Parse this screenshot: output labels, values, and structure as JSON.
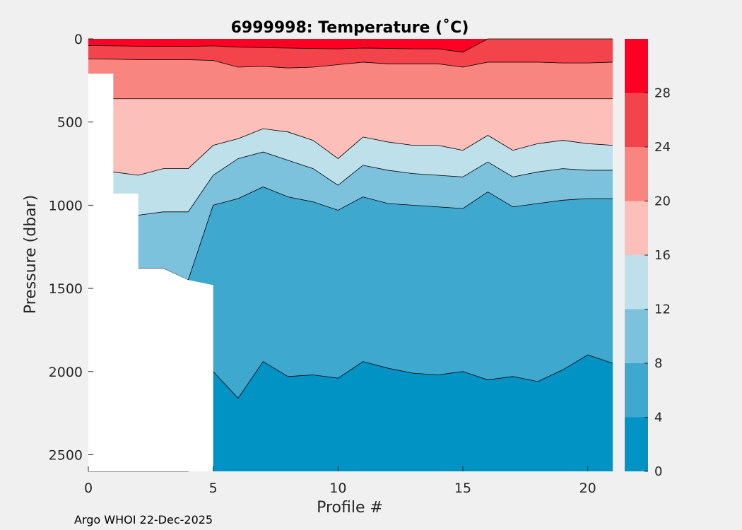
{
  "chart_data": {
    "type": "contour",
    "title": "6999998:  Temperature (˚C)",
    "xlabel": "Profile #",
    "ylabel": "Pressure (dbar)",
    "xlim": [
      0,
      21
    ],
    "ylim": [
      2600,
      0
    ],
    "x_ticks": [
      "0",
      "5",
      "10",
      "15",
      "20"
    ],
    "y_ticks": [
      "0",
      "500",
      "1000",
      "1500",
      "2000",
      "2500"
    ],
    "colorbar": {
      "levels": [
        0,
        4,
        8,
        12,
        16,
        20,
        24,
        28,
        32
      ],
      "tick_labels": [
        "0",
        "4",
        "8",
        "12",
        "16",
        "20",
        "24",
        "28"
      ],
      "colors": [
        "#0093c4",
        "#3fa8cf",
        "#7cc2dd",
        "#bde0eb",
        "#fcbfba",
        "#f88580",
        "#f3444c",
        "#ff0025"
      ]
    },
    "series": [
      {
        "name": "16°C isotherm",
        "x": [
          0,
          1,
          2,
          3,
          4,
          5,
          6,
          7,
          8,
          9,
          10,
          11,
          12,
          13,
          14,
          15,
          16,
          17,
          18,
          19,
          20,
          21
        ],
        "values": [
          null,
          800,
          820,
          780,
          780,
          640,
          600,
          540,
          560,
          610,
          720,
          590,
          620,
          640,
          640,
          670,
          580,
          670,
          630,
          610,
          630,
          640
        ]
      },
      {
        "name": "4°C isotherm",
        "x": [
          5,
          6,
          7,
          8,
          9,
          10,
          11,
          12,
          13,
          14,
          15,
          16,
          17,
          18,
          19,
          20,
          21
        ],
        "values": [
          2000,
          2160,
          1940,
          2030,
          2020,
          2040,
          1940,
          1980,
          2010,
          2020,
          2000,
          2050,
          2030,
          2060,
          1990,
          1900,
          1950
        ]
      }
    ],
    "data_coverage_start_dbar": [
      210,
      930,
      1380,
      1380,
      1450,
      2600,
      2600,
      2600,
      2600,
      2600,
      2600,
      2600,
      2600,
      2600,
      2600,
      2600,
      2600,
      2600,
      2600,
      2600,
      2600,
      2600
    ]
  },
  "footer": {
    "credit": "Argo WHOI 22-Dec-2025"
  }
}
